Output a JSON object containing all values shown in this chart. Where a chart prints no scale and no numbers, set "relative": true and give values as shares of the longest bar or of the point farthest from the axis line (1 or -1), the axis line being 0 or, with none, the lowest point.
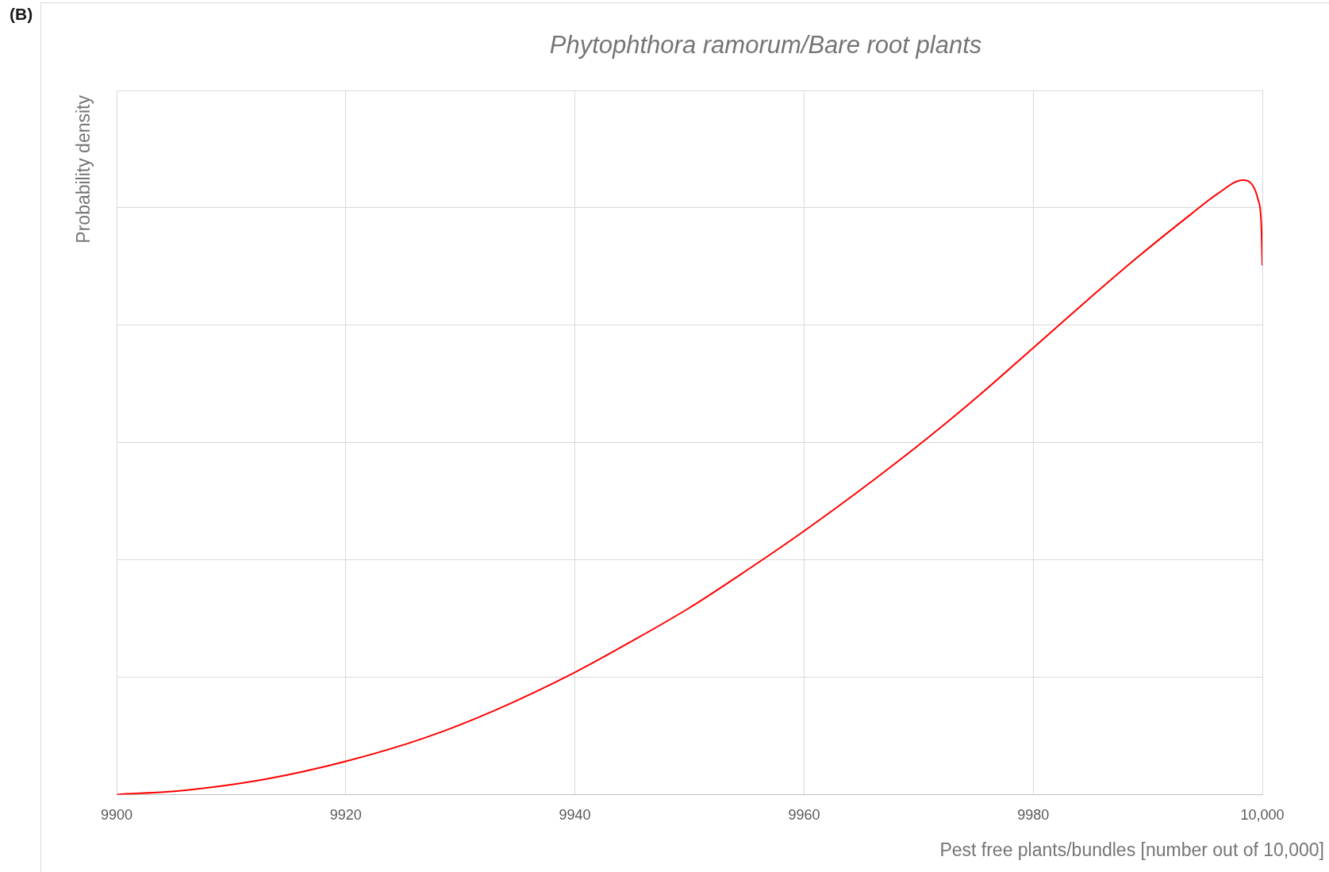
{
  "chart_data": {
    "type": "line",
    "title": "Phytophthora ramorum/Bare root plants",
    "xlabel": "Pest free plants/bundles [number out of 10,000]",
    "ylabel": "Probability density",
    "annotations": [
      "(B)"
    ],
    "x": [
      9900,
      9906,
      9913,
      9920,
      9927,
      9933,
      9940,
      9945,
      9950,
      9955,
      9960,
      9966,
      9970.7,
      9975.3,
      9980,
      9984.5,
      9989.2,
      9993.8,
      9996.1,
      9998.3,
      9999.1,
      9999.6,
      9999.9,
      10000
    ],
    "series": [
      {
        "color": "#ff0000",
        "values": [
          0,
          0.007,
          0.025,
          0.054,
          0.093,
          0.137,
          0.199,
          0.25,
          0.304,
          0.365,
          0.429,
          0.511,
          0.579,
          0.65,
          0.727,
          0.801,
          0.876,
          0.945,
          0.978,
          1,
          0.993,
          0.97,
          0.931,
          0.862
        ]
      }
    ],
    "relative": true,
    "xlim": [
      9900,
      10000
    ],
    "xticks": [
      9900,
      9920,
      9940,
      9960,
      9980,
      {
        "value": 10000,
        "label": "10,000"
      }
    ],
    "grid": true,
    "marker": "none"
  }
}
